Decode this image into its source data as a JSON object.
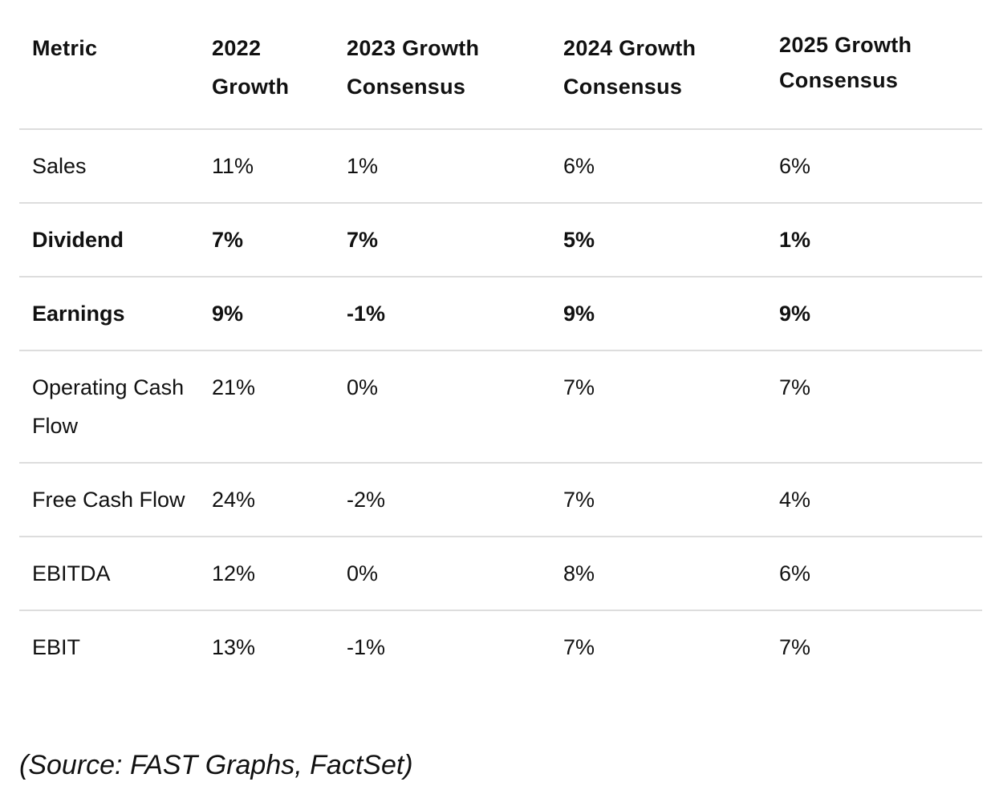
{
  "table": {
    "headers": [
      "Metric",
      "2022 Growth",
      "2023 Growth Consensus",
      "2024 Growth Consensus",
      "2025 Growth Consensus"
    ],
    "rows": [
      {
        "metric": "Sales",
        "y2022": "11%",
        "y2023": "1%",
        "y2024": "6%",
        "y2025": "6%"
      },
      {
        "metric": "Dividend",
        "y2022": "7%",
        "y2023": "7%",
        "y2024": "5%",
        "y2025": "1%"
      },
      {
        "metric": "Earnings",
        "y2022": "9%",
        "y2023": "-1%",
        "y2024": "9%",
        "y2025": "9%"
      },
      {
        "metric": "Operating Cash Flow",
        "y2022": "21%",
        "y2023": "0%",
        "y2024": "7%",
        "y2025": "7%"
      },
      {
        "metric": "Free Cash Flow",
        "y2022": "24%",
        "y2023": "-2%",
        "y2024": "7%",
        "y2025": "4%"
      },
      {
        "metric": "EBITDA",
        "y2022": "12%",
        "y2023": "0%",
        "y2024": "8%",
        "y2025": "6%"
      },
      {
        "metric": "EBIT",
        "y2022": "13%",
        "y2023": "-1%",
        "y2024": "7%",
        "y2025": "7%"
      }
    ]
  },
  "source": "(Source: FAST Graphs, FactSet)"
}
